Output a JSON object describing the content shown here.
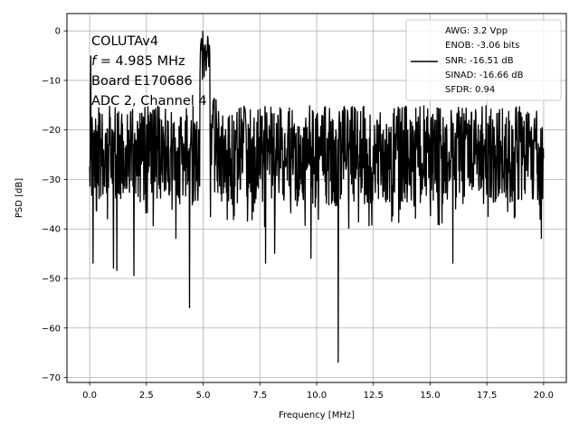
{
  "chart_data": {
    "type": "line",
    "xlabel": "Frequency [MHz]",
    "ylabel": "PSD [dB]",
    "xlim": [
      -1.0,
      21.0
    ],
    "ylim": [
      -71.0,
      3.5
    ],
    "x_ticks": [
      0.0,
      2.5,
      5.0,
      7.5,
      10.0,
      12.5,
      15.0,
      17.5,
      20.0
    ],
    "x_tick_labels": [
      "0.0",
      "2.5",
      "5.0",
      "7.5",
      "10.0",
      "12.5",
      "15.0",
      "17.5",
      "20.0"
    ],
    "y_ticks": [
      0,
      -10,
      -20,
      -30,
      -40,
      -50,
      -60,
      -70
    ],
    "y_tick_labels": [
      "0",
      "−10",
      "−20",
      "−30",
      "−40",
      "−50",
      "−60",
      "−70"
    ],
    "grid": true,
    "annotations": [
      {
        "text": "COLUTAv4"
      },
      {
        "text_prefix": "f",
        "text": " = 4.985 MHz"
      },
      {
        "text": "Board E170686"
      },
      {
        "text": "ADC 2, Channel 4"
      }
    ],
    "legend": {
      "placement": "top-right",
      "lines": [
        "AWG: 3.2 Vpp",
        "ENOB: -3.06 bits",
        "SNR: -16.51 dB",
        "SINAD: -16.66 dB",
        "SFDR: 0.94"
      ]
    },
    "series": [
      {
        "color": "#000000",
        "baseline_db": -24.0,
        "upper_envelope_db": -15.0,
        "lower_envelope_db": -35.0,
        "peaks": [
          {
            "x": 0.05,
            "y": -5.0
          },
          {
            "x": 4.985,
            "y": 0.0
          },
          {
            "x": 5.2,
            "y": -1.0
          }
        ],
        "dips": [
          {
            "x": 0.15,
            "y": -47.0
          },
          {
            "x": 1.05,
            "y": -48.0
          },
          {
            "x": 1.2,
            "y": -48.5
          },
          {
            "x": 1.95,
            "y": -49.5
          },
          {
            "x": 4.4,
            "y": -56.0
          },
          {
            "x": 3.8,
            "y": -42.0
          },
          {
            "x": 7.75,
            "y": -47.0
          },
          {
            "x": 8.15,
            "y": -45.0
          },
          {
            "x": 9.75,
            "y": -46.0
          },
          {
            "x": 10.95,
            "y": -67.0
          },
          {
            "x": 16.0,
            "y": -47.0
          },
          {
            "x": 19.9,
            "y": -42.0
          }
        ]
      }
    ]
  }
}
